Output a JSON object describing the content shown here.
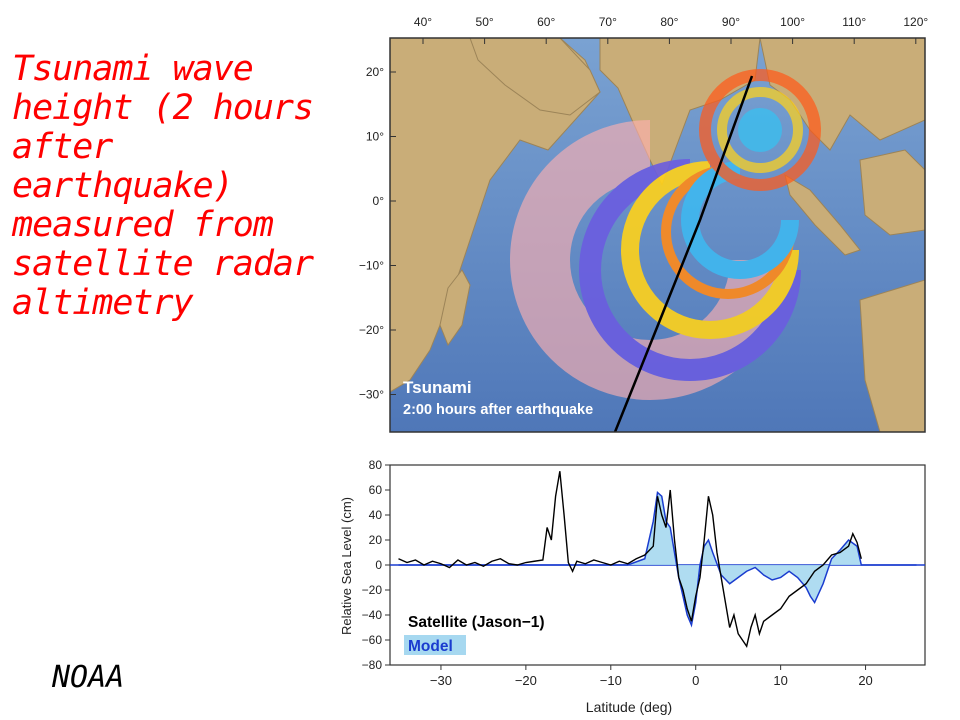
{
  "caption": "Tsunami wave height (2 hours after earthquake) measured from satellite radar altimetry",
  "credit": "NOAA",
  "colors": {
    "ocean": "#6f95c8",
    "ocean_deep": "#3f66a8",
    "land": "#c9ad78",
    "caption": "#ff0000",
    "satellite_line": "#000000",
    "model_line": "#1a3ccf",
    "model_fill": "#a6d8f0"
  },
  "map": {
    "overlay_title": "Tsunami",
    "overlay_subtitle": "2:00 hours after earthquake",
    "top_axis_ticks": [
      "40°",
      "50°",
      "60°",
      "70°",
      "80°",
      "90°",
      "100°",
      "110°",
      "120°"
    ],
    "left_axis_ticks": [
      "20°",
      "10°",
      "0°",
      "−10°",
      "−20°",
      "−30°"
    ]
  },
  "chart_data": {
    "type": "line",
    "xlabel": "Latitude (deg)",
    "ylabel": "Relative Sea Level (cm)",
    "xlim": [
      -36,
      27
    ],
    "ylim": [
      -80,
      80
    ],
    "x_ticks": [
      "−30",
      "−20",
      "−10",
      "0",
      "10",
      "20"
    ],
    "x_tick_values": [
      -30,
      -20,
      -10,
      0,
      10,
      20
    ],
    "y_ticks": [
      "80",
      "60",
      "40",
      "20",
      "0",
      "−20",
      "−40",
      "−60",
      "−80"
    ],
    "y_tick_values": [
      80,
      60,
      40,
      20,
      0,
      -20,
      -40,
      -60,
      -80
    ],
    "grid": false,
    "legend": {
      "placement": "bottom-left",
      "entries": [
        "Satellite (Jason−1)",
        "Model"
      ]
    },
    "series": [
      {
        "name": "Satellite (Jason−1)",
        "x": [
          -35,
          -34,
          -33,
          -32,
          -31,
          -30,
          -29,
          -28,
          -27,
          -26,
          -25,
          -24,
          -23,
          -22,
          -21,
          -20,
          -19,
          -18,
          -17.5,
          -17,
          -16.5,
          -16,
          -15.5,
          -15,
          -14.5,
          -14,
          -13,
          -12,
          -11,
          -10,
          -9,
          -8,
          -7,
          -6,
          -5,
          -4.5,
          -4,
          -3.5,
          -3,
          -2.5,
          -2,
          -1.5,
          -1,
          -0.5,
          0,
          0.5,
          1,
          1.5,
          2,
          2.5,
          3,
          3.5,
          4,
          4.5,
          5,
          5.5,
          6,
          6.5,
          7,
          7.5,
          8,
          9,
          10,
          11,
          12,
          13,
          14,
          15,
          16,
          17,
          18,
          18.5,
          19,
          19.5
        ],
        "values": [
          5,
          2,
          4,
          0,
          3,
          1,
          -2,
          4,
          0,
          2,
          -1,
          3,
          5,
          1,
          0,
          2,
          3,
          4,
          30,
          20,
          55,
          75,
          40,
          2,
          -5,
          3,
          1,
          4,
          2,
          0,
          3,
          1,
          5,
          8,
          15,
          55,
          40,
          30,
          60,
          20,
          -10,
          -20,
          -35,
          -45,
          -25,
          -10,
          20,
          55,
          40,
          10,
          -10,
          -30,
          -50,
          -40,
          -55,
          -60,
          -65,
          -50,
          -40,
          -55,
          -45,
          -40,
          -35,
          -25,
          -20,
          -15,
          -5,
          0,
          8,
          10,
          15,
          25,
          18,
          5
        ]
      },
      {
        "name": "Model",
        "x": [
          -35,
          -10,
          -8,
          -6,
          -5,
          -4.5,
          -4,
          -3.5,
          -3,
          -2.5,
          -2,
          -1.5,
          -1,
          -0.5,
          0,
          0.5,
          1,
          1.5,
          2,
          3,
          4,
          5,
          6,
          7,
          8,
          9,
          10,
          11,
          12,
          13,
          13.5,
          14,
          15,
          16,
          17,
          18,
          19,
          19.5,
          20,
          26
        ],
        "values": [
          0,
          0,
          0,
          5,
          35,
          58,
          55,
          35,
          30,
          10,
          -10,
          -25,
          -40,
          -48,
          -30,
          0,
          15,
          20,
          10,
          -8,
          -15,
          -10,
          -5,
          -2,
          -8,
          -12,
          -10,
          -5,
          -10,
          -18,
          -25,
          -30,
          -15,
          5,
          12,
          20,
          15,
          0,
          0,
          0
        ]
      }
    ]
  }
}
